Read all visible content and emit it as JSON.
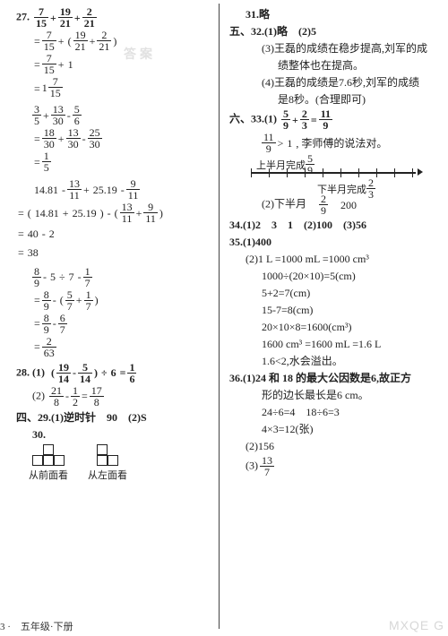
{
  "left": {
    "q27": {
      "number": "27.",
      "calc1": [
        {
          "type": "row",
          "parts": [
            "f:7/15",
            "+",
            "f:19/21",
            "+",
            "f:2/21"
          ]
        },
        {
          "type": "row",
          "prefix": "=",
          "parts": [
            "f:7/15",
            "+",
            "(",
            "f:19/21",
            "+",
            "f:2/21",
            ")"
          ]
        },
        {
          "type": "row",
          "prefix": "=",
          "parts": [
            "f:7/15",
            "+",
            "1"
          ]
        },
        {
          "type": "row",
          "prefix": "=",
          "parts": [
            "m:1:7/15"
          ]
        }
      ],
      "calc2": [
        {
          "type": "row",
          "parts": [
            "f:3/5",
            "+",
            "f:13/30",
            "-",
            "f:5/6"
          ]
        },
        {
          "type": "row",
          "prefix": "=",
          "parts": [
            "f:18/30",
            "+",
            "f:13/30",
            "-",
            "f:25/30"
          ]
        },
        {
          "type": "row",
          "prefix": "=",
          "parts": [
            "f:1/5"
          ]
        }
      ],
      "calc3": [
        {
          "type": "row",
          "parts": [
            "14.81",
            "-",
            "f:13/11",
            "+",
            "25.19",
            "-",
            "f:9/11"
          ]
        },
        {
          "type": "row",
          "prefix": "=",
          "parts": [
            "(",
            "14.81",
            "+",
            "25.19",
            ")",
            "-",
            "(",
            "f:13/11",
            "+",
            "f:9/11",
            ")"
          ]
        },
        {
          "type": "row",
          "prefix": "=",
          "parts": [
            "40",
            "-",
            "2"
          ]
        },
        {
          "type": "row",
          "prefix": "=",
          "parts": [
            "38"
          ]
        }
      ],
      "calc4": [
        {
          "type": "row",
          "parts": [
            "f:8/9",
            "-",
            "5",
            "÷",
            "7",
            "-",
            "f:1/7"
          ]
        },
        {
          "type": "row",
          "prefix": "=",
          "parts": [
            "f:8/9",
            "-",
            "(",
            "f:5/7",
            "+",
            "f:1/7",
            ")"
          ]
        },
        {
          "type": "row",
          "prefix": "=",
          "parts": [
            "f:8/9",
            "-",
            "f:6/7"
          ]
        },
        {
          "type": "row",
          "prefix": "=",
          "parts": [
            "f:2/63"
          ]
        }
      ]
    },
    "q28": {
      "number": "28.",
      "p1": {
        "label": "(1)",
        "parts": [
          "(",
          "f:19/14",
          "-",
          "f:5/14",
          ")",
          "÷",
          "6",
          "=",
          "f:1/6"
        ]
      },
      "p2": {
        "label": "(2)",
        "parts": [
          "f:21/8",
          "-",
          "f:1/2",
          "=",
          "f:17/8"
        ]
      }
    },
    "q29": {
      "section": "四、",
      "number": "29.",
      "p1": "(1)逆时针　90　(2)S"
    },
    "q30": {
      "number": "30.",
      "view_front": "从前面看",
      "view_left": "从左面看"
    },
    "footer": "3 ·　五年级·下册"
  },
  "right": {
    "q31": "31.略",
    "q32": {
      "section": "五、",
      "number": "32.",
      "p12": "(1)略　(2)5",
      "p3a": "(3)王磊的成绩在稳步提高,刘军的成",
      "p3b": "绩整体也在提高。",
      "p4a": "(4)王磊的成绩是7.6秒,刘军的成绩",
      "p4b": "是8秒。(合理即可)"
    },
    "q33": {
      "section": "六、",
      "number": "33.",
      "p1_row": {
        "label": "(1)",
        "parts": [
          "f:5/9",
          "+",
          "f:2/3",
          "=",
          "f:11/9"
        ]
      },
      "p1_judge_parts": [
        "f:11/9",
        ">",
        "1",
        ", 李师傅的说法对。"
      ],
      "nl_top_label_prefix": "上半月完成",
      "nl_top_frac": "5/9",
      "nl_bottom_label_prefix": "下半月完成",
      "nl_bottom_frac": "2/3",
      "p2_parts": {
        "label": "(2)下半月　",
        "parts": [
          "f:2/9",
          "　200"
        ]
      }
    },
    "q34": {
      "number": "34.",
      "line": "(1)2　3　1　(2)100　(3)56"
    },
    "q35": {
      "number": "35.",
      "p1": "(1)400",
      "p2a": "(2)1 L =1000 mL =1000 cm³",
      "steps": [
        "1000÷(20×10)=5(cm)",
        "5+2=7(cm)",
        "15-7=8(cm)",
        "20×10×8=1600(cm³)",
        "1600 cm³ =1600 mL =1.6 L",
        "1.6<2,水会溢出。"
      ]
    },
    "q36": {
      "number": "36.",
      "p1a": "(1)24 和 18 的最大公因数是6,故正方",
      "p1b": "形的边长最长是6 cm。",
      "steps": [
        "24÷6=4　18÷6=3",
        "4×3=12(张)"
      ],
      "p2": "(2)156",
      "p3_label": "(3)",
      "p3_parts": [
        "f:13/7"
      ]
    }
  },
  "watermark_small": "MXQE G",
  "watermark_top": "答案"
}
